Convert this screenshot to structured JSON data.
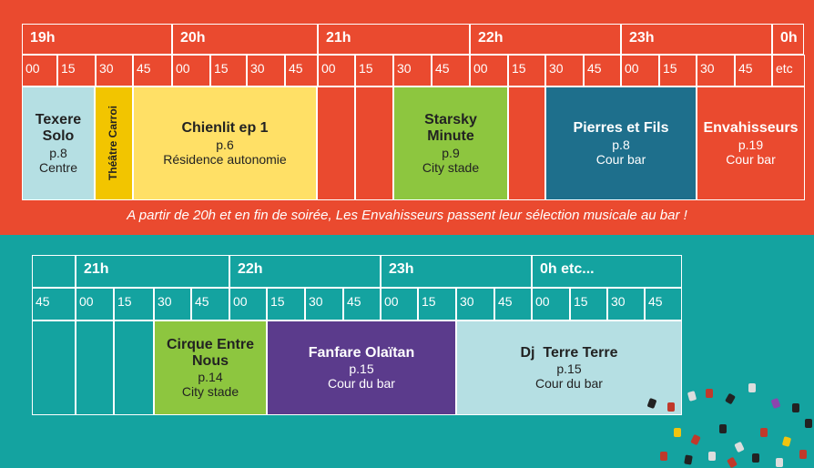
{
  "colors": {
    "red": "#ea4a2f",
    "teal": "#14a3a0",
    "lightblue": "#b5dfe3",
    "yellow": "#ffe066",
    "green": "#8dc63f",
    "navy": "#1e6f8c",
    "purple": "#5b3b8c",
    "gold": "#f2c500"
  },
  "top": {
    "hours": [
      "19h",
      "20h",
      "21h",
      "22h",
      "23h",
      "0h"
    ],
    "quarters": [
      "00",
      "15",
      "30",
      "45",
      "00",
      "15",
      "30",
      "45",
      "00",
      "15",
      "30",
      "45",
      "00",
      "15",
      "30",
      "45",
      "00",
      "15",
      "30",
      "45",
      "etc"
    ],
    "events": [
      {
        "title": "Texere Solo",
        "page": "p.8",
        "place": "Centre"
      },
      {
        "title": "Théâtre Carroi"
      },
      {
        "title": "Chienlit ep 1",
        "page": "p.6",
        "place": "Résidence autonomie"
      },
      {
        "title": "Starsky Minute",
        "page": "p.9",
        "place": "City stade"
      },
      {
        "title": "Pierres et Fils",
        "page": "p.8",
        "place": "Cour bar"
      },
      {
        "title": "Envahisseurs",
        "page": "p.19",
        "place": "Cour bar"
      }
    ],
    "note": "A partir de 20h et en fin de soirée, Les Envahisseurs passent leur sélection musicale au bar !"
  },
  "bottom": {
    "hours": [
      "21h",
      "22h",
      "23h",
      "0h etc..."
    ],
    "quarters": [
      "45",
      "00",
      "15",
      "30",
      "45",
      "00",
      "15",
      "30",
      "45",
      "00",
      "15",
      "30",
      "45",
      "00",
      "15",
      "30",
      "45"
    ],
    "events": [
      {
        "title": "Cirque Entre Nous",
        "page": "p.14",
        "place": "City stade"
      },
      {
        "title": "Fanfare Olaïtan",
        "page": "p.15",
        "place": "Cour du bar"
      },
      {
        "title": "Dj  Terre Terre",
        "page": "p.15",
        "place": "Cour du bar"
      }
    ]
  }
}
